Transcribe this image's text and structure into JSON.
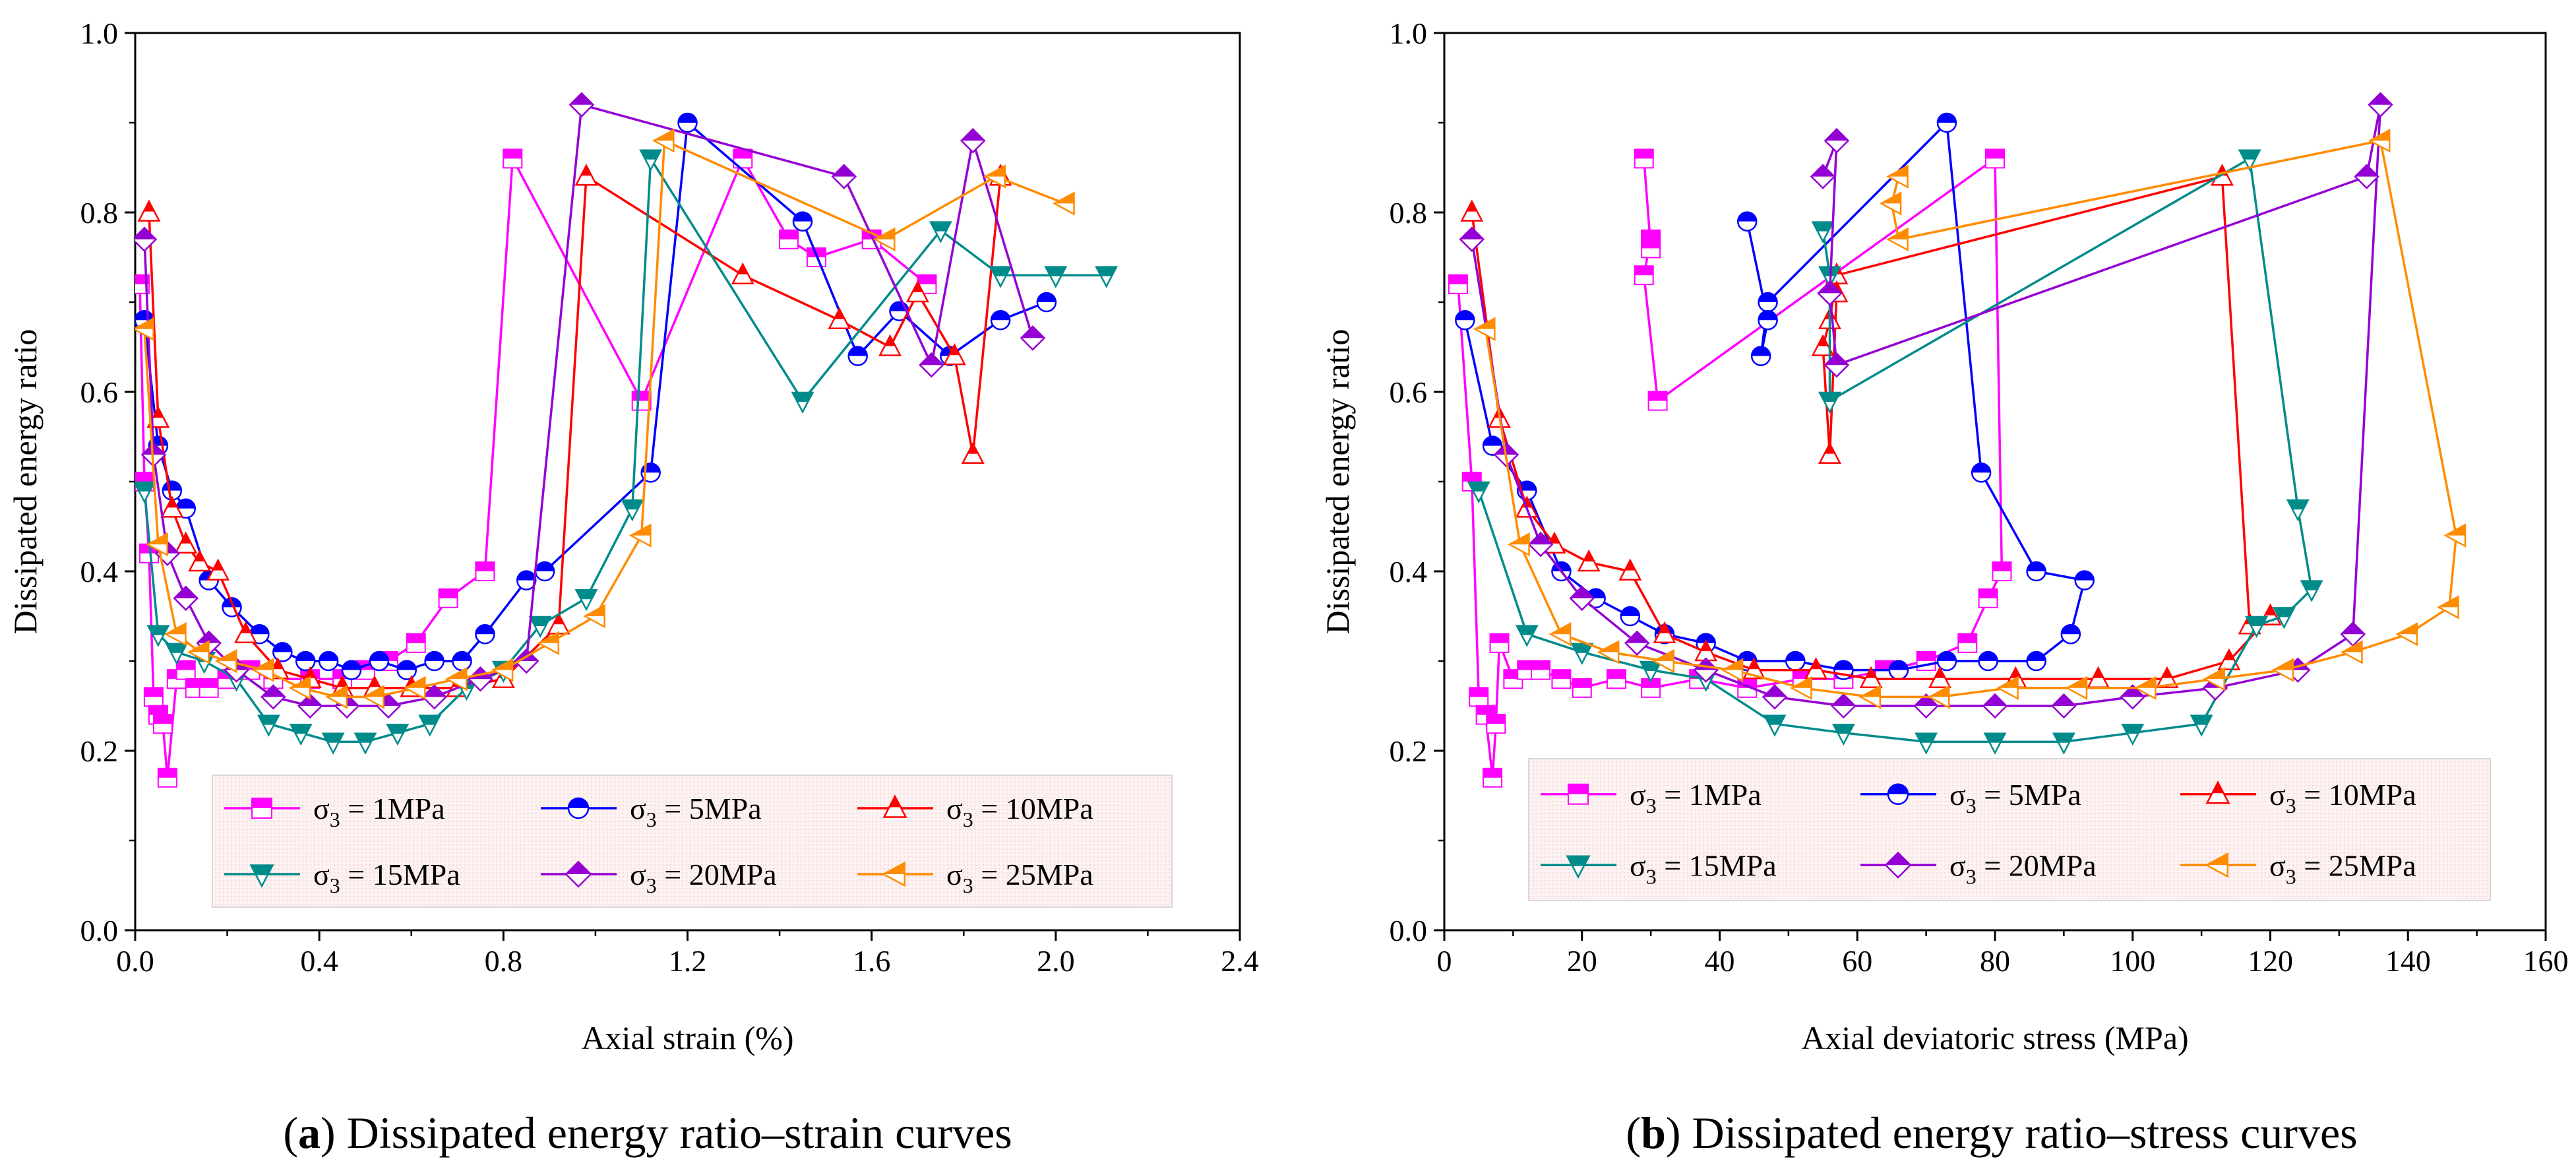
{
  "chart_data": [
    {
      "type": "line",
      "caption_letter": "(a)",
      "caption_text": " Dissipated energy ratio–strain curves",
      "xlabel": "Axial strain (%)",
      "ylabel": "Dissipated energy ratio",
      "xlim": [
        0,
        2.4
      ],
      "ylim": [
        0,
        1.0
      ],
      "xticks": [
        "0.0",
        "0.4",
        "0.8",
        "1.2",
        "1.6",
        "2.0",
        "2.4"
      ],
      "yticks": [
        "0.0",
        "0.2",
        "0.4",
        "0.6",
        "0.8",
        "1.0"
      ],
      "legend_position": "bottom-right",
      "series": [
        {
          "name": "σ3 = 1MPa",
          "sym": "σ",
          "sub": "3",
          "rest": " = 1MPa",
          "color": "#ff00ff",
          "marker": "square",
          "x": [
            0.01,
            0.02,
            0.03,
            0.04,
            0.05,
            0.06,
            0.07,
            0.09,
            0.11,
            0.13,
            0.16,
            0.2,
            0.25,
            0.3,
            0.38,
            0.45,
            0.5,
            0.55,
            0.61,
            0.68,
            0.76,
            0.82,
            1.1,
            1.32,
            1.42,
            1.48,
            1.6,
            1.72
          ],
          "y": [
            0.72,
            0.5,
            0.42,
            0.26,
            0.24,
            0.23,
            0.17,
            0.28,
            0.29,
            0.27,
            0.27,
            0.28,
            0.29,
            0.28,
            0.28,
            0.28,
            0.29,
            0.3,
            0.32,
            0.37,
            0.4,
            0.86,
            0.59,
            0.86,
            0.77,
            0.75,
            0.77,
            0.72
          ]
        },
        {
          "name": "σ3 = 5MPa",
          "sym": "σ",
          "sub": "3",
          "rest": " = 5MPa",
          "color": "#0000ff",
          "marker": "circle",
          "x": [
            0.02,
            0.05,
            0.08,
            0.11,
            0.16,
            0.21,
            0.27,
            0.32,
            0.37,
            0.42,
            0.47,
            0.53,
            0.59,
            0.65,
            0.71,
            0.76,
            0.85,
            0.89,
            1.12,
            1.2,
            1.45,
            1.57,
            1.66,
            1.77,
            1.88,
            1.98
          ],
          "y": [
            0.68,
            0.54,
            0.49,
            0.47,
            0.39,
            0.36,
            0.33,
            0.31,
            0.3,
            0.3,
            0.29,
            0.3,
            0.29,
            0.3,
            0.3,
            0.33,
            0.39,
            0.4,
            0.51,
            0.9,
            0.79,
            0.64,
            0.69,
            0.64,
            0.68,
            0.7
          ]
        },
        {
          "name": "σ3 = 10MPa",
          "sym": "σ",
          "sub": "3",
          "rest": " = 10MPa",
          "color": "#ff0000",
          "marker": "triangle-up",
          "x": [
            0.03,
            0.05,
            0.08,
            0.11,
            0.14,
            0.18,
            0.24,
            0.31,
            0.38,
            0.45,
            0.52,
            0.6,
            0.7,
            0.8,
            0.92,
            0.98,
            1.32,
            1.53,
            1.64,
            1.7,
            1.78,
            1.82,
            1.88
          ],
          "y": [
            0.8,
            0.57,
            0.47,
            0.43,
            0.41,
            0.4,
            0.33,
            0.29,
            0.28,
            0.27,
            0.27,
            0.27,
            0.27,
            0.28,
            0.34,
            0.84,
            0.73,
            0.68,
            0.65,
            0.71,
            0.64,
            0.53,
            0.84
          ]
        },
        {
          "name": "σ3 = 15MPa",
          "sym": "σ",
          "sub": "3",
          "rest": " = 15MPa",
          "color": "#008b8b",
          "marker": "triangle-down",
          "x": [
            0.02,
            0.05,
            0.09,
            0.15,
            0.22,
            0.29,
            0.36,
            0.43,
            0.5,
            0.57,
            0.64,
            0.72,
            0.8,
            0.88,
            0.98,
            1.08,
            1.12,
            1.45,
            1.75,
            1.88,
            2.0,
            2.11
          ],
          "y": [
            0.49,
            0.33,
            0.31,
            0.3,
            0.28,
            0.23,
            0.22,
            0.21,
            0.21,
            0.22,
            0.23,
            0.27,
            0.29,
            0.34,
            0.37,
            0.47,
            0.86,
            0.59,
            0.78,
            0.73,
            0.73,
            0.73
          ]
        },
        {
          "name": "σ3 = 20MPa",
          "sym": "σ",
          "sub": "3",
          "rest": " = 20MPa",
          "color": "#9400d3",
          "marker": "diamond",
          "x": [
            0.02,
            0.04,
            0.07,
            0.11,
            0.16,
            0.22,
            0.3,
            0.38,
            0.46,
            0.55,
            0.65,
            0.75,
            0.85,
            0.97,
            1.54,
            1.73,
            1.82,
            1.95
          ],
          "y": [
            0.77,
            0.53,
            0.42,
            0.37,
            0.32,
            0.29,
            0.26,
            0.25,
            0.25,
            0.25,
            0.26,
            0.28,
            0.3,
            0.92,
            0.84,
            0.63,
            0.88,
            0.66
          ]
        },
        {
          "name": "σ3 = 25MPa",
          "sym": "σ",
          "sub": "3",
          "rest": " = 25MPa",
          "color": "#ff8c00",
          "marker": "triangle-left",
          "x": [
            0.02,
            0.05,
            0.09,
            0.14,
            0.2,
            0.28,
            0.36,
            0.44,
            0.52,
            0.61,
            0.7,
            0.8,
            0.9,
            1.0,
            1.1,
            1.15,
            1.63,
            1.87,
            2.02
          ],
          "y": [
            0.67,
            0.43,
            0.33,
            0.31,
            0.3,
            0.29,
            0.27,
            0.26,
            0.26,
            0.27,
            0.28,
            0.29,
            0.32,
            0.35,
            0.44,
            0.88,
            0.77,
            0.84,
            0.81
          ]
        }
      ]
    },
    {
      "type": "line",
      "caption_letter": "(b)",
      "caption_text": " Dissipated energy ratio–stress curves",
      "xlabel": "Axial deviatoric stress (MPa)",
      "ylabel": "Dissipated energy ratio",
      "xlim": [
        0,
        160
      ],
      "ylim": [
        0,
        1.0
      ],
      "xticks": [
        "0",
        "20",
        "40",
        "60",
        "80",
        "100",
        "120",
        "140",
        "160"
      ],
      "yticks": [
        "0.0",
        "0.2",
        "0.4",
        "0.6",
        "0.8",
        "1.0"
      ],
      "legend_position": "bottom",
      "series": [
        {
          "name": "σ3 = 1MPa",
          "sym": "σ",
          "sub": "3",
          "rest": " = 1MPa",
          "color": "#ff00ff",
          "marker": "square",
          "x": [
            2,
            4,
            5,
            6,
            7,
            7.5,
            8,
            10,
            12,
            14,
            17,
            20,
            25,
            30,
            37,
            44,
            52,
            58,
            64,
            70,
            76,
            79,
            81,
            80,
            31,
            29,
            30,
            30,
            29
          ],
          "y": [
            0.72,
            0.5,
            0.26,
            0.24,
            0.17,
            0.23,
            0.32,
            0.28,
            0.29,
            0.29,
            0.28,
            0.27,
            0.28,
            0.27,
            0.28,
            0.27,
            0.28,
            0.28,
            0.29,
            0.3,
            0.32,
            0.37,
            0.4,
            0.86,
            0.59,
            0.73,
            0.77,
            0.76,
            0.86
          ]
        },
        {
          "name": "σ3 = 5MPa",
          "sym": "σ",
          "sub": "3",
          "rest": " = 5MPa",
          "color": "#0000ff",
          "marker": "circle",
          "x": [
            3,
            7,
            12,
            17,
            22,
            27,
            32,
            38,
            44,
            51,
            58,
            66,
            73,
            79,
            86,
            91,
            93,
            86,
            78,
            73,
            47,
            46,
            47,
            44
          ],
          "y": [
            0.68,
            0.54,
            0.49,
            0.4,
            0.37,
            0.35,
            0.33,
            0.32,
            0.3,
            0.3,
            0.29,
            0.29,
            0.3,
            0.3,
            0.3,
            0.33,
            0.39,
            0.4,
            0.51,
            0.9,
            0.7,
            0.64,
            0.68,
            0.79
          ]
        },
        {
          "name": "σ3 = 10MPa",
          "sym": "σ",
          "sub": "3",
          "rest": " = 10MPa",
          "color": "#ff0000",
          "marker": "triangle-up",
          "x": [
            4,
            8,
            12,
            16,
            21,
            27,
            32,
            38,
            45,
            54,
            62,
            72,
            83,
            95,
            105,
            114,
            120,
            117,
            113,
            57,
            56,
            55,
            56,
            57
          ],
          "y": [
            0.8,
            0.57,
            0.47,
            0.43,
            0.41,
            0.4,
            0.33,
            0.31,
            0.29,
            0.29,
            0.28,
            0.28,
            0.28,
            0.28,
            0.28,
            0.3,
            0.35,
            0.34,
            0.84,
            0.73,
            0.68,
            0.65,
            0.53,
            0.71
          ]
        },
        {
          "name": "σ3 = 15MPa",
          "sym": "σ",
          "sub": "3",
          "rest": " = 15MPa",
          "color": "#008b8b",
          "marker": "triangle-down",
          "x": [
            5,
            12,
            20,
            30,
            38,
            48,
            58,
            70,
            80,
            90,
            100,
            110,
            118,
            122,
            126,
            124,
            117,
            56,
            56,
            55
          ],
          "y": [
            0.49,
            0.33,
            0.31,
            0.29,
            0.28,
            0.23,
            0.22,
            0.21,
            0.21,
            0.21,
            0.22,
            0.23,
            0.34,
            0.35,
            0.38,
            0.47,
            0.86,
            0.59,
            0.73,
            0.78
          ]
        },
        {
          "name": "σ3 = 20MPa",
          "sym": "σ",
          "sub": "3",
          "rest": " = 20MPa",
          "color": "#9400d3",
          "marker": "diamond",
          "x": [
            4,
            9,
            14,
            20,
            28,
            38,
            48,
            58,
            70,
            80,
            90,
            100,
            112,
            124,
            132,
            136,
            134,
            57,
            56,
            57,
            55
          ],
          "y": [
            0.77,
            0.53,
            0.43,
            0.37,
            0.32,
            0.29,
            0.26,
            0.25,
            0.25,
            0.25,
            0.25,
            0.26,
            0.27,
            0.29,
            0.33,
            0.92,
            0.84,
            0.63,
            0.71,
            0.88,
            0.84
          ]
        },
        {
          "name": "σ3 = 25MPa",
          "sym": "σ",
          "sub": "3",
          "rest": " = 25MPa",
          "color": "#ff8c00",
          "marker": "triangle-left",
          "x": [
            6,
            11,
            17,
            24,
            32,
            42,
            52,
            62,
            72,
            82,
            92,
            102,
            112,
            122,
            132,
            140,
            146,
            147,
            136,
            66,
            65,
            66
          ],
          "y": [
            0.67,
            0.43,
            0.33,
            0.31,
            0.3,
            0.29,
            0.27,
            0.26,
            0.26,
            0.27,
            0.27,
            0.27,
            0.28,
            0.29,
            0.31,
            0.33,
            0.36,
            0.44,
            0.88,
            0.77,
            0.81,
            0.84
          ]
        }
      ]
    }
  ]
}
